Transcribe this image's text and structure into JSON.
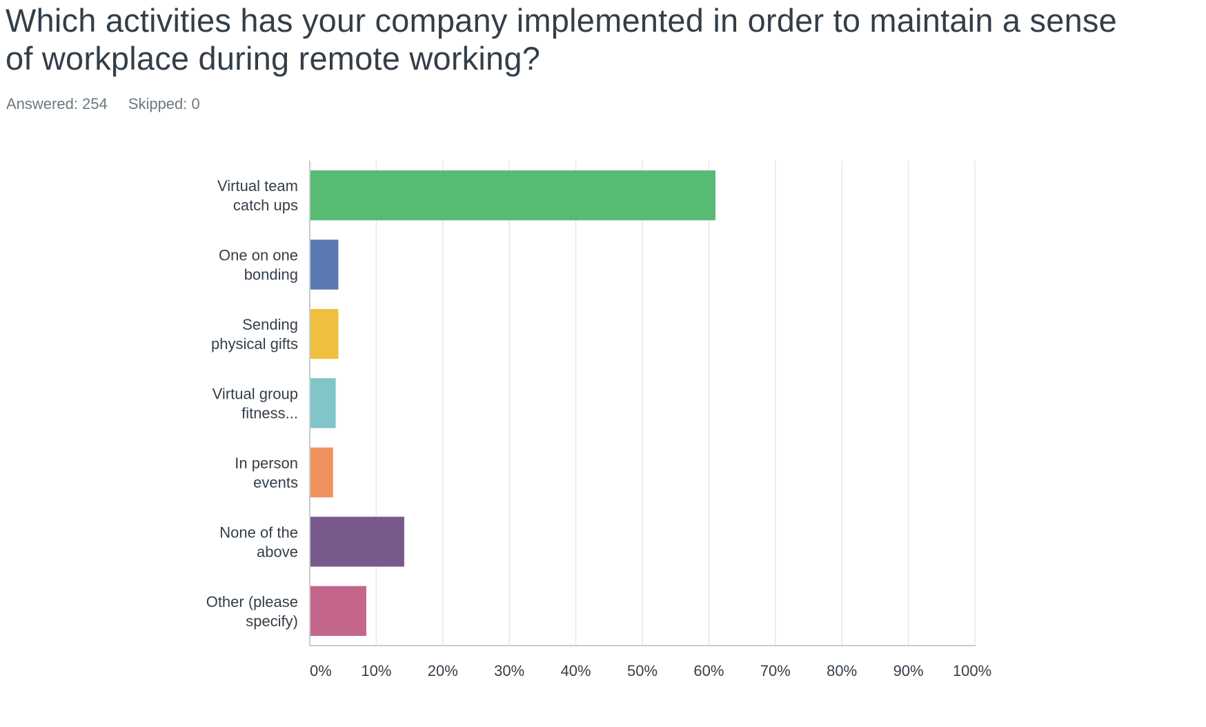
{
  "question": {
    "title_line1": "Which activities has your company implemented in order to maintain a sense",
    "title_line2": "of workplace during remote working?"
  },
  "stats": {
    "answered": "Answered: 254",
    "skipped": "Skipped: 0"
  },
  "chart_data": {
    "type": "bar",
    "orientation": "horizontal",
    "categories": [
      [
        "Virtual team",
        "catch ups"
      ],
      [
        "One on one",
        "bonding"
      ],
      [
        "Sending",
        "physical gifts"
      ],
      [
        "Virtual group",
        "fitness..."
      ],
      [
        "In person",
        "events"
      ],
      [
        "None of the",
        "above"
      ],
      [
        "Other (please",
        "specify)"
      ]
    ],
    "values": [
      61,
      4.3,
      4.3,
      3.9,
      3.5,
      14.2,
      8.5
    ],
    "colors": [
      "#57bb74",
      "#5b79b2",
      "#efbf3f",
      "#82c5c9",
      "#f0925e",
      "#775a8b",
      "#c4668c"
    ],
    "xlim": [
      0,
      100
    ],
    "xticks": [
      "0%",
      "10%",
      "20%",
      "30%",
      "40%",
      "50%",
      "60%",
      "70%",
      "80%",
      "90%",
      "100%"
    ],
    "grid": true,
    "gridColor": "#e4e6e8",
    "axisColor": "#c8cccf"
  }
}
